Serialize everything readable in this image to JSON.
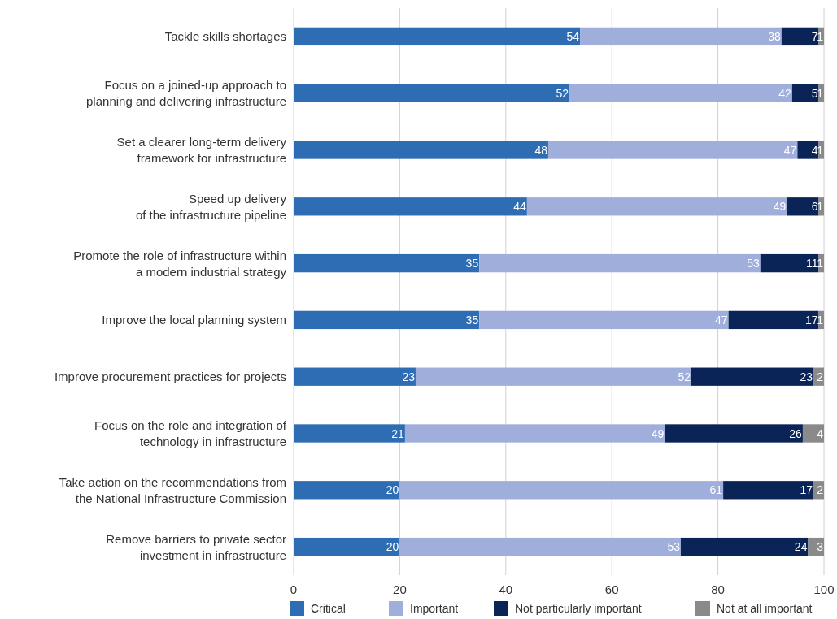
{
  "chart_data": {
    "type": "bar",
    "orientation": "horizontal",
    "stacked": true,
    "data_labels": true,
    "grid": "x",
    "legend": "bottom",
    "categories": [
      "Tackle skills shortages",
      "Focus on a joined-up approach to\nplanning and delivering infrastructure",
      "Set a clearer long-term delivery\nframework for infrastructure",
      "Speed up delivery\nof the infrastructure pipeline",
      "Promote the role of infrastructure within\na modern industrial strategy",
      "Improve the local planning system",
      "Improve procurement practices for projects",
      "Focus on the role and integration of\ntechnology in infrastructure",
      "Take action on the recommendations from\nthe National Infrastructure Commission",
      "Remove barriers to private sector\ninvestment in infrastructure"
    ],
    "series": [
      {
        "name": "Critical",
        "color": "#2e6db4",
        "values": [
          54,
          52,
          48,
          44,
          35,
          35,
          23,
          21,
          20,
          20
        ]
      },
      {
        "name": "Important",
        "color": "#a0aedb",
        "values": [
          38,
          42,
          47,
          49,
          53,
          47,
          52,
          49,
          61,
          53
        ]
      },
      {
        "name": "Not particularly important",
        "color": "#0b2457",
        "values": [
          7,
          5,
          4,
          6,
          11,
          17,
          23,
          26,
          17,
          24
        ]
      },
      {
        "name": "Not at all important",
        "color": "#8a8a8a",
        "values": [
          1,
          1,
          1,
          1,
          1,
          1,
          2,
          4,
          2,
          3
        ]
      }
    ],
    "xlim": [
      0,
      100
    ],
    "xticks": [
      0,
      20,
      40,
      60,
      80,
      100
    ]
  }
}
